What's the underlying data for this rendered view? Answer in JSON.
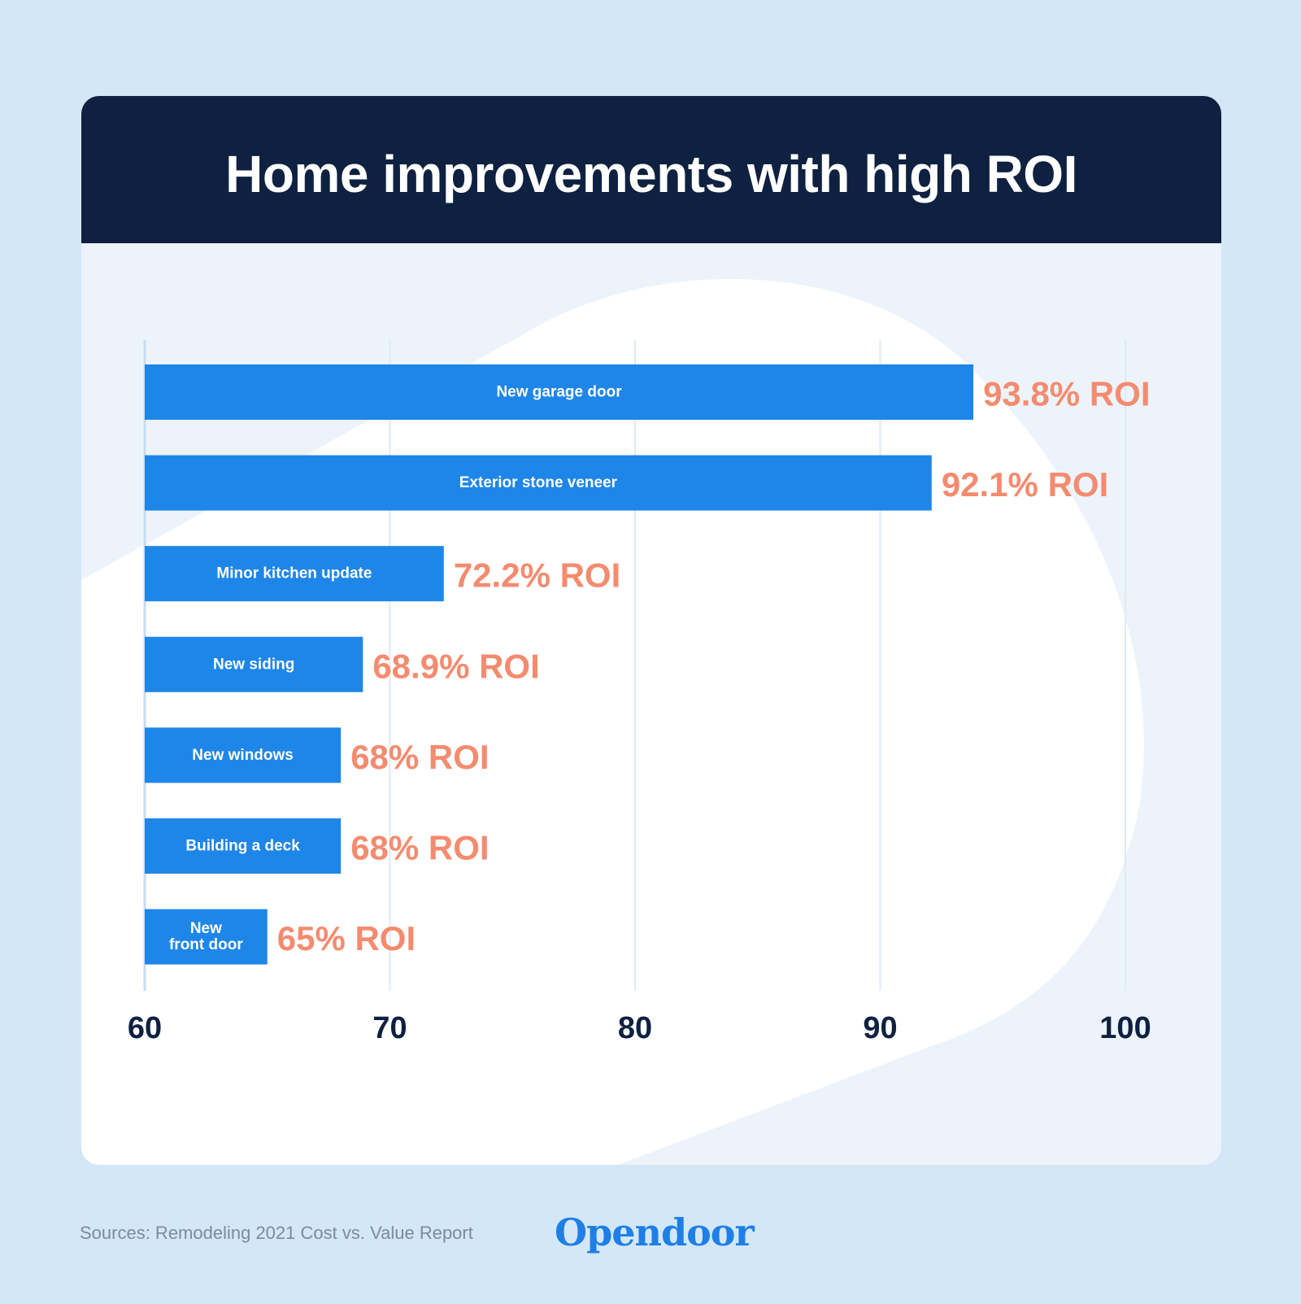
{
  "title": "Home improvements with high ROI",
  "footer": {
    "source": "Sources: Remodeling 2021 Cost vs. Value Report",
    "brand": "Opendoor"
  },
  "colors": {
    "page_background": "#d3e7f7",
    "header": "#0e2140",
    "bar": "#1e86e8",
    "value_label": "#f48b6f",
    "axis_text": "#0e2140",
    "brand": "#1e7fe6"
  },
  "chart_data": {
    "type": "bar",
    "orientation": "horizontal",
    "title": "Home improvements with high ROI",
    "categories": [
      [
        "New garage door"
      ],
      [
        "Exterior stone veneer"
      ],
      [
        "Minor kitchen update"
      ],
      [
        "New siding"
      ],
      [
        "New windows"
      ],
      [
        "Building a deck"
      ],
      [
        "New",
        "front door"
      ]
    ],
    "values": [
      93.8,
      92.1,
      72.2,
      68.9,
      68,
      68,
      65
    ],
    "value_labels": [
      "93.8% ROI",
      "92.1% ROI",
      "72.2% ROI",
      "68.9% ROI",
      "68% ROI",
      "68% ROI",
      "65% ROI"
    ],
    "xlim": [
      60,
      100
    ],
    "xticks": [
      60,
      70,
      80,
      90,
      100
    ],
    "xtick_labels": [
      "60",
      "70",
      "80",
      "90",
      "100"
    ],
    "grid": true
  }
}
